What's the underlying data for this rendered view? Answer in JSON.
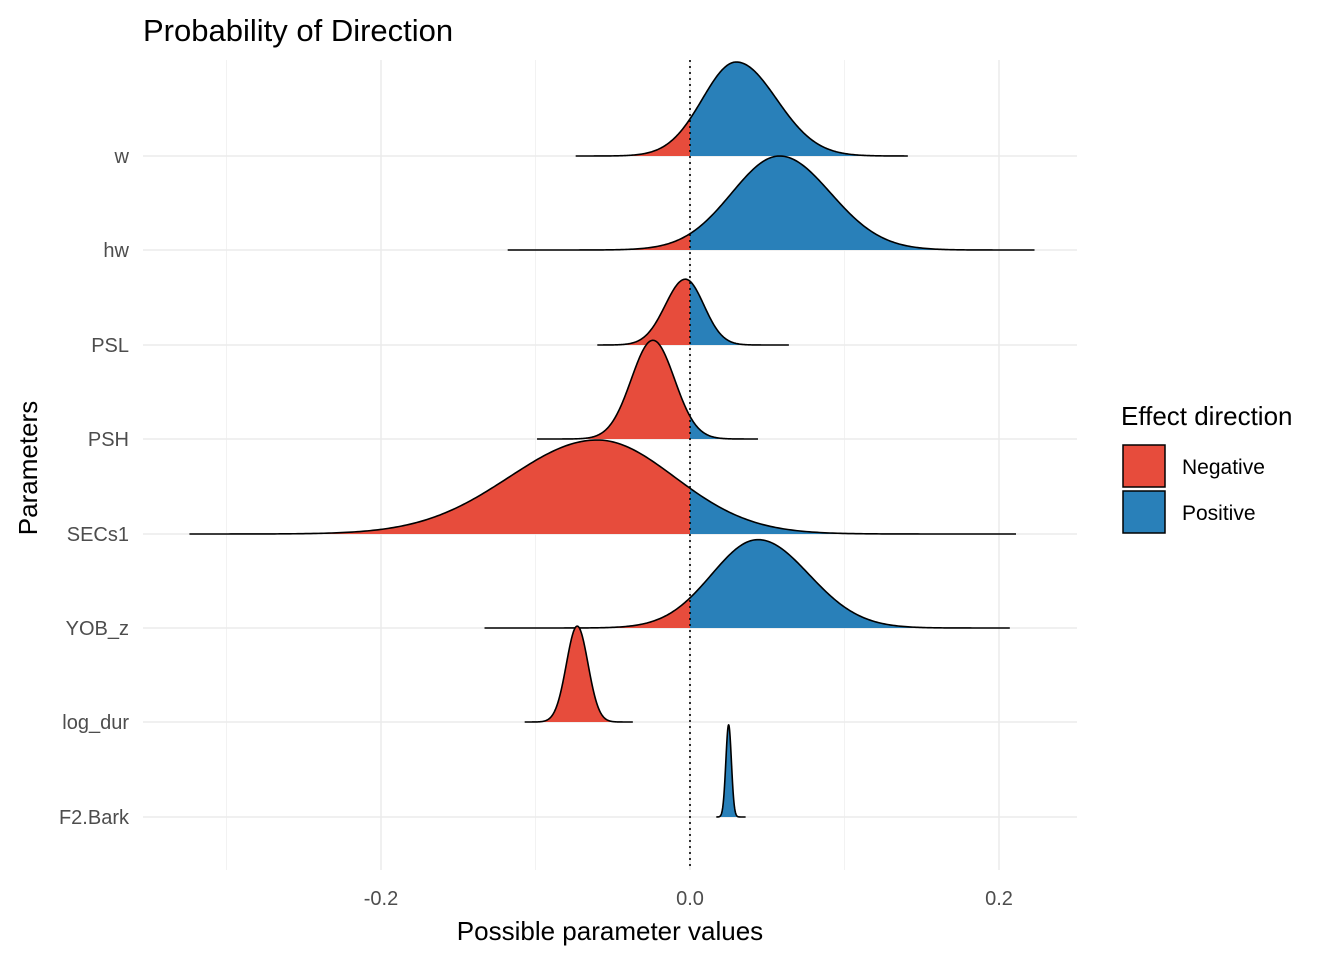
{
  "chart_data": {
    "type": "ridgeline-density",
    "title": "Probability of Direction",
    "xlabel": "Possible parameter values",
    "ylabel": "Parameters",
    "xlim": [
      -0.35,
      0.25
    ],
    "x_ticks": [
      {
        "value": -0.2,
        "label": "-0.2"
      },
      {
        "value": 0.0,
        "label": "0.0"
      },
      {
        "value": 0.2,
        "label": "0.2"
      }
    ],
    "reference_line": {
      "x": 0,
      "style": "dotted"
    },
    "grid": true,
    "legend": {
      "title": "Effect direction",
      "position": "right",
      "entries": [
        {
          "label": "Negative",
          "color": "#E74C3C"
        },
        {
          "label": "Positive",
          "color": "#2980B9"
        }
      ]
    },
    "parameters": [
      {
        "name": "w",
        "min": -0.074,
        "max": 0.141,
        "mode": 0.03,
        "sd_left": 0.022,
        "sd_right": 0.026,
        "scale": 1.0
      },
      {
        "name": "hw",
        "min": -0.118,
        "max": 0.223,
        "mode": 0.058,
        "sd_left": 0.031,
        "sd_right": 0.033,
        "scale": 1.0
      },
      {
        "name": "PSL",
        "min": -0.06,
        "max": 0.064,
        "mode": -0.003,
        "sd_left": 0.013,
        "sd_right": 0.012,
        "scale": 0.7
      },
      {
        "name": "PSH",
        "min": -0.099,
        "max": 0.044,
        "mode": -0.024,
        "sd_left": 0.014,
        "sd_right": 0.014,
        "scale": 1.05
      },
      {
        "name": "SECs1",
        "min": -0.324,
        "max": 0.211,
        "mode": -0.06,
        "sd_left": 0.057,
        "sd_right": 0.05,
        "scale": 1.0
      },
      {
        "name": "YOB_z",
        "min": -0.133,
        "max": 0.207,
        "mode": 0.044,
        "sd_left": 0.03,
        "sd_right": 0.033,
        "scale": 0.94
      },
      {
        "name": "log_dur",
        "min": -0.107,
        "max": -0.037,
        "mode": -0.073,
        "sd_left": 0.007,
        "sd_right": 0.007,
        "scale": 1.02
      },
      {
        "name": "F2.Bark",
        "min": 0.017,
        "max": 0.036,
        "mode": 0.025,
        "sd_left": 0.0018,
        "sd_right": 0.0018,
        "scale": 0.98
      }
    ]
  }
}
